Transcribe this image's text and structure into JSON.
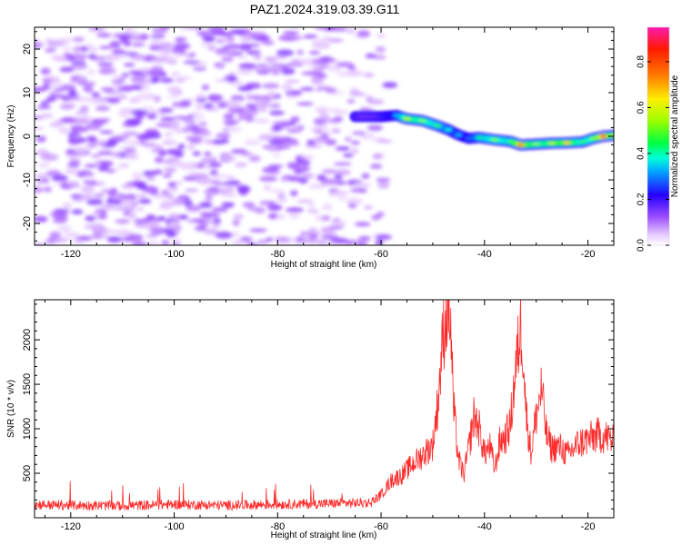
{
  "title": "PAZ1.2024.319.03.39.G11",
  "colors": {
    "snr_line": "#ff2a2a",
    "background": "#ffffff",
    "axes": "#000000"
  },
  "chart_data": [
    {
      "type": "heatmap",
      "title": "PAZ1.2024.319.03.39.G11",
      "xlabel": "Height of straight line (km)",
      "ylabel": "Frequency (Hz)",
      "xlim": [
        -127,
        -15
      ],
      "ylim": [
        -25,
        25
      ],
      "x_ticks": [
        -120,
        -100,
        -80,
        -60,
        -40,
        -20
      ],
      "y_ticks": [
        -20,
        -10,
        0,
        10,
        20
      ],
      "colorbar": {
        "label": "Normalized spectral amplitude",
        "range": [
          0,
          0.95
        ],
        "ticks": [
          "0.0",
          "0.2",
          "0.4",
          "0.6",
          "0.8"
        ],
        "colormap": "rainbow (white → violet → blue → cyan → green → yellow → red → magenta)"
      },
      "noise_region": {
        "x_range": [
          -127,
          -58
        ],
        "amplitude_range": [
          0.03,
          0.15
        ]
      },
      "signal_track": {
        "points": [
          {
            "x": -65,
            "freq": 4.5,
            "amp": 0.22
          },
          {
            "x": -60,
            "freq": 4.5,
            "amp": 0.25
          },
          {
            "x": -57,
            "freq": 4.8,
            "amp": 0.35
          },
          {
            "x": -55,
            "freq": 4.0,
            "amp": 0.6
          },
          {
            "x": -52,
            "freq": 3.6,
            "amp": 0.55
          },
          {
            "x": -49,
            "freq": 2.4,
            "amp": 0.5
          },
          {
            "x": -47,
            "freq": 1.5,
            "amp": 0.4
          },
          {
            "x": -45,
            "freq": 0.3,
            "amp": 0.35
          },
          {
            "x": -43,
            "freq": -0.5,
            "amp": 0.3
          },
          {
            "x": -41,
            "freq": -0.3,
            "amp": 0.45
          },
          {
            "x": -38,
            "freq": -0.8,
            "amp": 0.55
          },
          {
            "x": -35,
            "freq": -1.2,
            "amp": 0.5
          },
          {
            "x": -33,
            "freq": -2.0,
            "amp": 0.8
          },
          {
            "x": -30,
            "freq": -1.8,
            "amp": 0.55
          },
          {
            "x": -27,
            "freq": -1.6,
            "amp": 0.6
          },
          {
            "x": -24,
            "freq": -1.5,
            "amp": 0.7
          },
          {
            "x": -21,
            "freq": -1.3,
            "amp": 0.5
          },
          {
            "x": -19,
            "freq": -0.5,
            "amp": 0.55
          },
          {
            "x": -17,
            "freq": 0.0,
            "amp": 0.85
          },
          {
            "x": -15,
            "freq": 0.2,
            "amp": 0.6
          }
        ]
      }
    },
    {
      "type": "line",
      "xlabel": "Height of straight line (km)",
      "ylabel": "SNR (10 * v/v)",
      "xlim": [
        -127,
        -15
      ],
      "ylim": [
        0,
        2450
      ],
      "x_ticks": [
        -120,
        -100,
        -80,
        -60,
        -40,
        -20
      ],
      "y_ticks": [
        500,
        1000,
        1500,
        2000
      ],
      "series": [
        {
          "color": "#ff2a2a",
          "x": [
            -127,
            -120,
            -110,
            -100,
            -90,
            -80,
            -70,
            -62,
            -60,
            -58,
            -56,
            -54,
            -52,
            -50,
            -49,
            -48,
            -47,
            -46.5,
            -46,
            -45,
            -44,
            -43,
            -42,
            -41,
            -40,
            -39,
            -38,
            -37,
            -36,
            -35,
            -34,
            -33,
            -32.5,
            -32,
            -31,
            -30,
            -29,
            -28,
            -27,
            -26,
            -25,
            -24,
            -22,
            -20,
            -18,
            -16,
            -15
          ],
          "y": [
            150,
            140,
            135,
            150,
            140,
            150,
            160,
            170,
            260,
            420,
            480,
            600,
            700,
            820,
            1300,
            2050,
            2450,
            2100,
            1250,
            650,
            480,
            800,
            1150,
            1000,
            720,
            800,
            550,
            860,
            900,
            1050,
            1650,
            2150,
            1900,
            1200,
            720,
            1150,
            1450,
            920,
            780,
            800,
            780,
            700,
            830,
            880,
            930,
            900,
            850
          ]
        }
      ]
    }
  ]
}
